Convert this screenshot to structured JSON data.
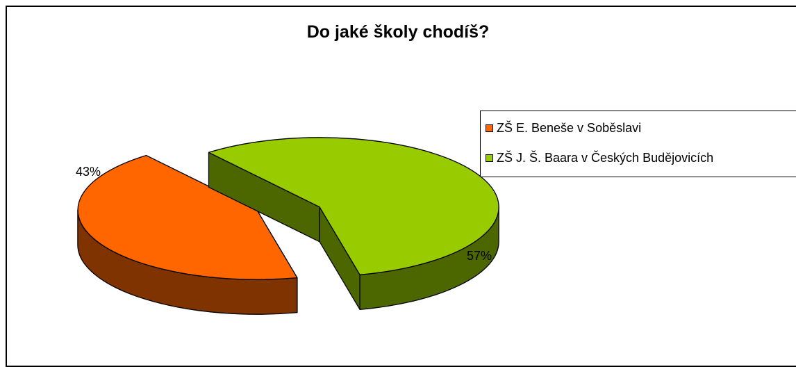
{
  "chart_data": {
    "type": "pie",
    "title": "Do jaké školy chodíš?",
    "series": [
      {
        "name": "ZŠ E. Beneše v Soběslavi",
        "value": 43,
        "label": "43%",
        "color": "#FF6600",
        "side_color": "#7F3300"
      },
      {
        "name": "ZŠ J. Š. Baara v Českých Budějovicích",
        "value": 57,
        "label": "57%",
        "color": "#99CC00",
        "side_color": "#4C6600"
      }
    ],
    "legend_position": "right",
    "style": "3d-exploded"
  }
}
